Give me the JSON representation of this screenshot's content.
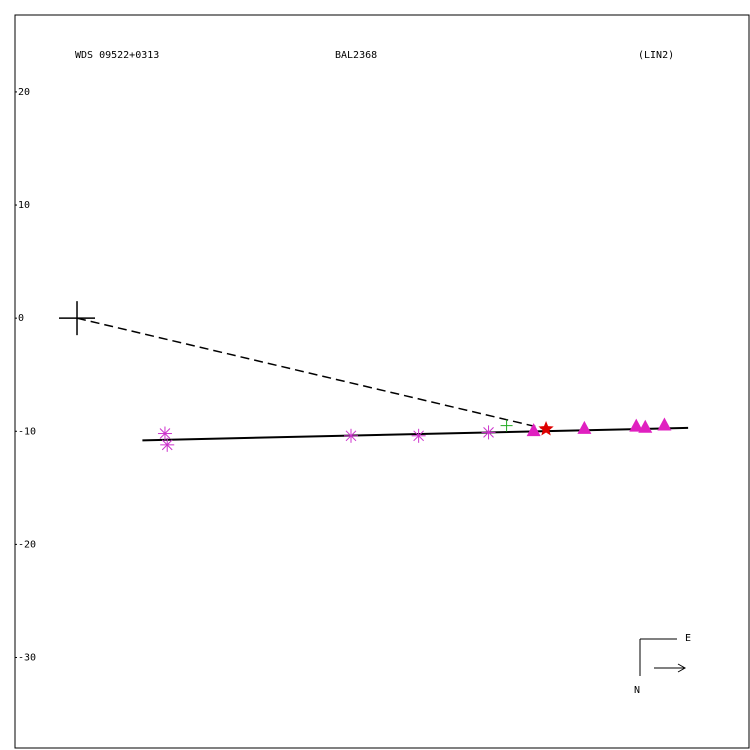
{
  "chart_data": {
    "type": "scatter",
    "title": "WDS 09522+0313",
    "subtitle": "BAL2368",
    "annotation": "(LIN2)",
    "compass": {
      "east": "E",
      "north": "N"
    },
    "xlim": [
      -5.5,
      59.6
    ],
    "ylim": [
      -38,
      26.8
    ],
    "yticks": [
      20,
      10,
      0,
      -10,
      -20,
      -30
    ],
    "primary": {
      "x": 0,
      "y": 0
    },
    "fit": {
      "x": [
        5.8,
        54.2
      ],
      "values": [
        -10.8,
        -9.7
      ],
      "color": "#000000"
    },
    "series": [
      {
        "marker": "asterisk",
        "color": "#cc33cc",
        "x": [
          7.8,
          8.0,
          24.3,
          30.3,
          36.5
        ],
        "values": [
          -10.2,
          -11.2,
          -10.4,
          -10.4,
          -10.1
        ]
      },
      {
        "marker": "triangle",
        "color": "#e020c0",
        "x": [
          40.5,
          45.0,
          49.6,
          50.4,
          52.1
        ],
        "values": [
          -9.9,
          -9.7,
          -9.5,
          -9.6,
          -9.4
        ]
      },
      {
        "marker": "plus",
        "color": "#22aa22",
        "x": [
          38.1
        ],
        "values": [
          -9.5
        ]
      },
      {
        "marker": "star",
        "color": "#dd0000",
        "x": [
          41.6
        ],
        "values": [
          -9.8
        ]
      }
    ]
  }
}
